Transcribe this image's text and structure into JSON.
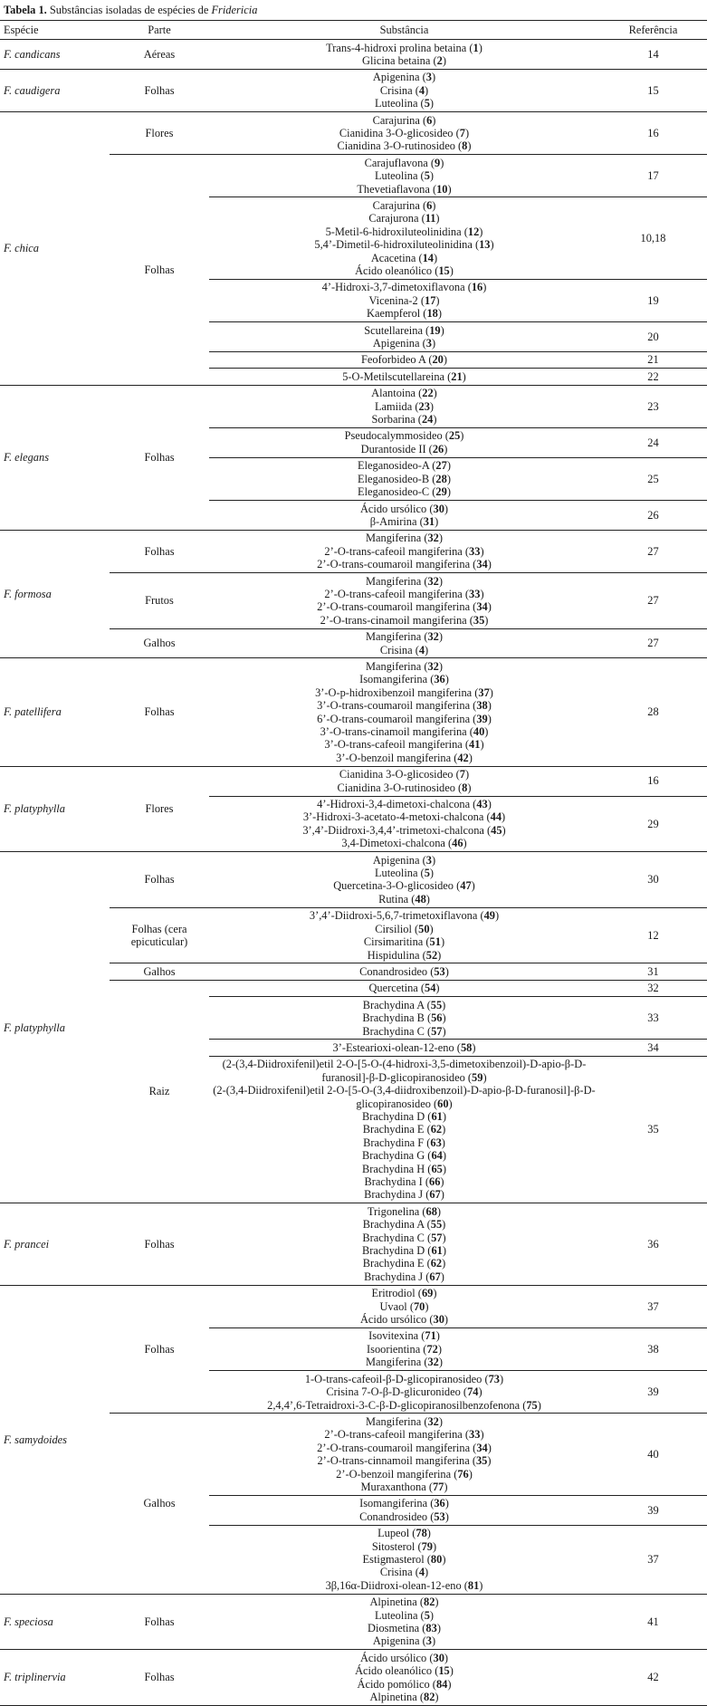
{
  "caption": {
    "label": "Tabela 1.",
    "text": "Substâncias isoladas de espécies de ",
    "genus": "Fridericia"
  },
  "headers": {
    "species": "Espécie",
    "part": "Parte",
    "substance": "Substância",
    "reference": "Referência"
  },
  "species": [
    {
      "name": "F. candicans",
      "parts": [
        {
          "name": "Aéreas",
          "groups": [
            {
              "ref": "14",
              "substances": [
                {
                  "name": "Trans-4-hidroxi prolina betaina",
                  "n": "1"
                },
                {
                  "name": "Glicina betaina",
                  "n": "2"
                }
              ]
            }
          ]
        }
      ]
    },
    {
      "name": "F. caudigera",
      "parts": [
        {
          "name": "Folhas",
          "groups": [
            {
              "ref": "15",
              "substances": [
                {
                  "name": "Apigenina",
                  "n": "3"
                },
                {
                  "name": "Crisina",
                  "n": "4"
                },
                {
                  "name": "Luteolina",
                  "n": "5"
                }
              ]
            }
          ]
        }
      ]
    },
    {
      "name": "F. chica",
      "parts": [
        {
          "name": "Flores",
          "groups": [
            {
              "ref": "16",
              "substances": [
                {
                  "name": "Carajurina",
                  "n": "6"
                },
                {
                  "name": "Cianidina 3-O-glicosideo",
                  "n": "7"
                },
                {
                  "name": "Cianidina 3-O-rutinosideo",
                  "n": "8"
                }
              ]
            }
          ]
        },
        {
          "name": "Folhas",
          "groups": [
            {
              "ref": "17",
              "substances": [
                {
                  "name": "Carajuflavona",
                  "n": "9"
                },
                {
                  "name": "Luteolina",
                  "n": "5"
                },
                {
                  "name": "Thevetiaflavona",
                  "n": "10"
                }
              ]
            },
            {
              "ref": "10,18",
              "substances": [
                {
                  "name": "Carajurina",
                  "n": "6"
                },
                {
                  "name": "Carajurona",
                  "n": "11"
                },
                {
                  "name": "5-Metil-6-hidroxiluteolinidina",
                  "n": "12"
                },
                {
                  "name": "5,4’-Dimetil-6-hidroxiluteolinidina",
                  "n": "13"
                },
                {
                  "name": "Acacetina",
                  "n": "14"
                },
                {
                  "name": "Ácido oleanólico",
                  "n": "15"
                }
              ]
            },
            {
              "ref": "19",
              "substances": [
                {
                  "name": "4’-Hidroxi-3,7-dimetoxiflavona",
                  "n": "16"
                },
                {
                  "name": "Vicenina-2",
                  "n": "17"
                },
                {
                  "name": "Kaempferol",
                  "n": "18"
                }
              ]
            },
            {
              "ref": "20",
              "substances": [
                {
                  "name": "Scutellareina",
                  "n": "19"
                },
                {
                  "name": "Apigenina",
                  "n": "3"
                }
              ]
            },
            {
              "ref": "21",
              "substances": [
                {
                  "name": "Feoforbideo A",
                  "n": "20"
                }
              ]
            },
            {
              "ref": "22",
              "substances": [
                {
                  "name": "5-O-Metilscutellareina",
                  "n": "21"
                }
              ]
            }
          ]
        }
      ]
    },
    {
      "name": "F. elegans",
      "parts": [
        {
          "name": "Folhas",
          "groups": [
            {
              "ref": "23",
              "substances": [
                {
                  "name": "Alantoina",
                  "n": "22"
                },
                {
                  "name": "Lamiida",
                  "n": "23"
                },
                {
                  "name": "Sorbarina",
                  "n": "24"
                }
              ]
            },
            {
              "ref": "24",
              "substances": [
                {
                  "name": "Pseudocalymmosideo",
                  "n": "25"
                },
                {
                  "name": "Durantoside II",
                  "n": "26"
                }
              ]
            },
            {
              "ref": "25",
              "substances": [
                {
                  "name": "Eleganosideo-A",
                  "n": "27"
                },
                {
                  "name": "Eleganosideo-B",
                  "n": "28"
                },
                {
                  "name": "Eleganosideo-C",
                  "n": "29"
                }
              ]
            },
            {
              "ref": "26",
              "substances": [
                {
                  "name": "Ácido ursólico",
                  "n": "30"
                },
                {
                  "name": "β-Amirina",
                  "n": "31"
                }
              ]
            }
          ]
        }
      ]
    },
    {
      "name": "F. formosa",
      "parts": [
        {
          "name": "Folhas",
          "groups": [
            {
              "ref": "27",
              "substances": [
                {
                  "name": "Mangiferina",
                  "n": "32"
                },
                {
                  "name": "2’-O-trans-cafeoil mangiferina",
                  "n": "33"
                },
                {
                  "name": "2’-O-trans-coumaroil mangiferina",
                  "n": "34"
                }
              ]
            }
          ]
        },
        {
          "name": "Frutos",
          "groups": [
            {
              "ref": "27",
              "substances": [
                {
                  "name": "Mangiferina",
                  "n": "32"
                },
                {
                  "name": "2’-O-trans-cafeoil mangiferina",
                  "n": "33"
                },
                {
                  "name": "2’-O-trans-coumaroil mangiferina",
                  "n": "34"
                },
                {
                  "name": "2’-O-trans-cinamoil mangiferina",
                  "n": "35"
                }
              ]
            }
          ]
        },
        {
          "name": "Galhos",
          "groups": [
            {
              "ref": "27",
              "substances": [
                {
                  "name": "Mangiferina",
                  "n": "32"
                },
                {
                  "name": "Crisina",
                  "n": "4"
                }
              ]
            }
          ]
        }
      ]
    },
    {
      "name": "F. patellifera",
      "parts": [
        {
          "name": "Folhas",
          "groups": [
            {
              "ref": "28",
              "substances": [
                {
                  "name": "Mangiferina",
                  "n": "32"
                },
                {
                  "name": "Isomangiferina",
                  "n": "36"
                },
                {
                  "name": "3’-O-p-hidroxibenzoil mangiferina",
                  "n": "37"
                },
                {
                  "name": "3’-O-trans-coumaroil mangiferina",
                  "n": "38"
                },
                {
                  "name": "6’-O-trans-coumaroil mangiferina",
                  "n": "39"
                },
                {
                  "name": "3’-O-trans-cinamoil mangiferina",
                  "n": "40"
                },
                {
                  "name": "3’-O-trans-cafeoil mangiferina",
                  "n": "41"
                },
                {
                  "name": "3’-O-benzoil mangiferina",
                  "n": "42"
                }
              ]
            }
          ]
        }
      ]
    },
    {
      "name": "F. platyphylla",
      "parts": [
        {
          "name": "Flores",
          "groups": [
            {
              "ref": "16",
              "substances": [
                {
                  "name": "Cianidina 3-O-glicosideo",
                  "n": "7"
                },
                {
                  "name": "Cianidina 3-O-rutinosideo",
                  "n": "8"
                }
              ]
            },
            {
              "ref": "29",
              "substances": [
                {
                  "name": "4’-Hidroxi-3,4-dimetoxi-chalcona",
                  "n": "43"
                },
                {
                  "name": "3’-Hidroxi-3-acetato-4-metoxi-chalcona",
                  "n": "44"
                },
                {
                  "name": "3’,4’-Diidroxi-3,4,4’-trimetoxi-chalcona",
                  "n": "45"
                },
                {
                  "name": "3,4-Dimetoxi-chalcona",
                  "n": "46"
                }
              ]
            }
          ]
        }
      ]
    },
    {
      "name": "F. platyphylla",
      "parts": [
        {
          "name": "Folhas",
          "groups": [
            {
              "ref": "30",
              "substances": [
                {
                  "name": "Apigenina",
                  "n": "3"
                },
                {
                  "name": "Luteolina",
                  "n": "5"
                },
                {
                  "name": "Quercetina-3-O-glicosideo",
                  "n": "47"
                },
                {
                  "name": "Rutina",
                  "n": "48"
                }
              ]
            }
          ]
        },
        {
          "name": "Folhas (cera epicuticular)",
          "groups": [
            {
              "ref": "12",
              "substances": [
                {
                  "name": "3’,4’-Diidroxi-5,6,7-trimetoxiflavona",
                  "n": "49"
                },
                {
                  "name": "Cirsiliol",
                  "n": "50"
                },
                {
                  "name": "Cirsimaritina",
                  "n": "51"
                },
                {
                  "name": "Hispidulina",
                  "n": "52"
                }
              ]
            }
          ]
        },
        {
          "name": "Galhos",
          "groups": [
            {
              "ref": "31",
              "substances": [
                {
                  "name": "Conandrosideo",
                  "n": "53"
                }
              ]
            }
          ]
        },
        {
          "name": "Raiz",
          "groups": [
            {
              "ref": "32",
              "substances": [
                {
                  "name": "Quercetina",
                  "n": "54"
                }
              ]
            },
            {
              "ref": "33",
              "substances": [
                {
                  "name": "Brachydina A",
                  "n": "55"
                },
                {
                  "name": "Brachydina B",
                  "n": "56"
                },
                {
                  "name": "Brachydina C",
                  "n": "57"
                }
              ]
            },
            {
              "ref": "34",
              "substances": [
                {
                  "name": "3’-Estearioxi-olean-12-eno",
                  "n": "58"
                }
              ]
            },
            {
              "ref": "35",
              "substances": [
                {
                  "name": "(2-(3,4-Diidroxifenil)etil 2-O-[5-O-(4-hidroxi-3,5-dimetoxibenzoil)-D-apio-β-D-furanosil]-β-D-glicopiranosideo",
                  "n": "59"
                },
                {
                  "name": "(2-(3,4-Diidroxifenil)etil 2-O-[5-O-(3,4-diidroxibenzoil)-D-apio-β-D-furanosil]-β-D-glicopiranosideo",
                  "n": "60"
                },
                {
                  "name": "Brachydina D",
                  "n": "61"
                },
                {
                  "name": "Brachydina E",
                  "n": "62"
                },
                {
                  "name": "Brachydina F",
                  "n": "63"
                },
                {
                  "name": "Brachydina G",
                  "n": "64"
                },
                {
                  "name": "Brachydina H",
                  "n": "65"
                },
                {
                  "name": "Brachydina I",
                  "n": "66"
                },
                {
                  "name": "Brachydina J",
                  "n": "67"
                }
              ]
            }
          ]
        }
      ]
    },
    {
      "name": "F. prancei",
      "parts": [
        {
          "name": "Folhas",
          "groups": [
            {
              "ref": "36",
              "substances": [
                {
                  "name": "Trigonelina",
                  "n": "68"
                },
                {
                  "name": "Brachydina A",
                  "n": "55"
                },
                {
                  "name": "Brachydina C",
                  "n": "57"
                },
                {
                  "name": "Brachydina D",
                  "n": "61"
                },
                {
                  "name": "Brachydina E",
                  "n": "62"
                },
                {
                  "name": "Brachydina J",
                  "n": "67"
                }
              ]
            }
          ]
        }
      ]
    },
    {
      "name": "F. samydoides",
      "parts": [
        {
          "name": "Folhas",
          "groups": [
            {
              "ref": "37",
              "substances": [
                {
                  "name": "Eritrodiol",
                  "n": "69"
                },
                {
                  "name": "Uvaol",
                  "n": "70"
                },
                {
                  "name": "Ácido ursólico",
                  "n": "30"
                }
              ]
            },
            {
              "ref": "38",
              "substances": [
                {
                  "name": "Isovitexina",
                  "n": "71"
                },
                {
                  "name": "Isoorientina",
                  "n": "72"
                },
                {
                  "name": "Mangiferina",
                  "n": "32"
                }
              ]
            },
            {
              "ref": "39",
              "substances": [
                {
                  "name": "1-O-trans-cafeoil-β-D-glicopiranosideo",
                  "n": "73"
                },
                {
                  "name": "Crisina 7-O-β-D-glicuronideo",
                  "n": "74"
                },
                {
                  "name": "2,4,4’,6-Tetraidroxi-3-C-β-D-glicopiranosilbenzofenona",
                  "n": "75"
                }
              ]
            }
          ]
        },
        {
          "name": "Galhos",
          "groups": [
            {
              "ref": "40",
              "substances": [
                {
                  "name": "Mangiferina",
                  "n": "32"
                },
                {
                  "name": "2’-O-trans-cafeoil mangiferina",
                  "n": "33"
                },
                {
                  "name": "2’-O-trans-coumaroil mangiferina",
                  "n": "34"
                },
                {
                  "name": "2’-O-trans-cinnamoil mangiferina",
                  "n": "35"
                },
                {
                  "name": "2’-O-benzoil mangiferina",
                  "n": "76"
                },
                {
                  "name": "Muraxanthona",
                  "n": "77"
                }
              ]
            },
            {
              "ref": "39",
              "substances": [
                {
                  "name": "Isomangiferina",
                  "n": "36"
                },
                {
                  "name": "Conandrosideo",
                  "n": "53"
                }
              ]
            },
            {
              "ref": "37",
              "substances": [
                {
                  "name": "Lupeol",
                  "n": "78"
                },
                {
                  "name": "Sitosterol",
                  "n": "79"
                },
                {
                  "name": "Estigmasterol",
                  "n": "80"
                },
                {
                  "name": "Crisina",
                  "n": "4"
                },
                {
                  "name": "3β,16α-Diidroxi-olean-12-eno",
                  "n": "81"
                }
              ]
            }
          ]
        }
      ]
    },
    {
      "name": "F. speciosa",
      "parts": [
        {
          "name": "Folhas",
          "groups": [
            {
              "ref": "41",
              "substances": [
                {
                  "name": "Alpinetina",
                  "n": "82"
                },
                {
                  "name": "Luteolina",
                  "n": "5"
                },
                {
                  "name": "Diosmetina",
                  "n": "83"
                },
                {
                  "name": "Apigenina",
                  "n": "3"
                }
              ]
            }
          ]
        }
      ]
    },
    {
      "name": "F. triplinervia",
      "parts": [
        {
          "name": "Folhas",
          "groups": [
            {
              "ref": "42",
              "substances": [
                {
                  "name": "Ácido ursólico",
                  "n": "30"
                },
                {
                  "name": "Ácido oleanólico",
                  "n": "15"
                },
                {
                  "name": "Ácido pomólico",
                  "n": "84"
                },
                {
                  "name": "Alpinetina",
                  "n": "82"
                }
              ]
            }
          ]
        }
      ]
    }
  ]
}
